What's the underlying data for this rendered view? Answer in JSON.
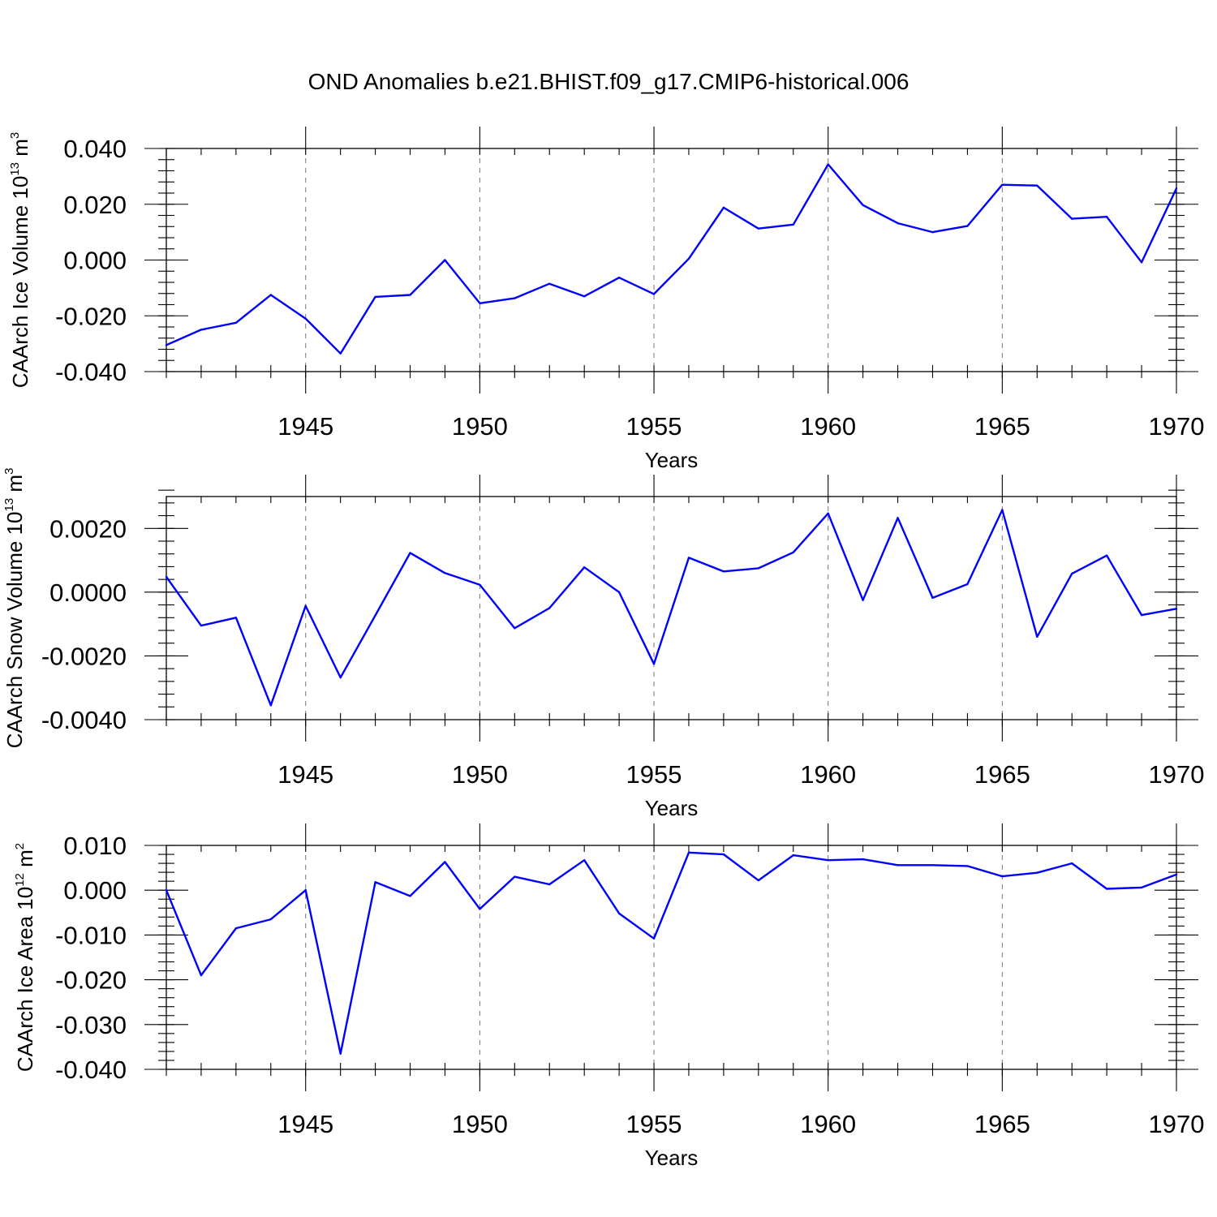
{
  "title": "OND Anomalies b.e21.BHIST.f09_g17.CMIP6-historical.006",
  "chart_data": [
    {
      "type": "line",
      "name": "ice-volume",
      "ylabel": "CAArch Ice Volume 10",
      "ylabel_exp": "13",
      "ylabel_unit": " m",
      "ylabel_unit_exp": "3",
      "xlabel": "Years",
      "xlim": [
        1941,
        1970
      ],
      "ylim": [
        -0.04,
        0.04
      ],
      "yticks": [
        -0.04,
        -0.02,
        0.0,
        0.02,
        0.04
      ],
      "ytick_labels": [
        "-0.040",
        "-0.020",
        "0.000",
        "0.020",
        "0.040"
      ],
      "xticks": [
        1945,
        1950,
        1955,
        1960,
        1965,
        1970
      ],
      "xtick_labels": [
        "1945",
        "1950",
        "1955",
        "1960",
        "1965",
        "1970"
      ],
      "x": [
        1941,
        1942,
        1943,
        1944,
        1945,
        1946,
        1947,
        1948,
        1949,
        1950,
        1951,
        1952,
        1953,
        1954,
        1955,
        1956,
        1957,
        1958,
        1959,
        1960,
        1961,
        1962,
        1963,
        1964,
        1965,
        1966,
        1967,
        1968,
        1969,
        1970
      ],
      "values": [
        -0.0305,
        -0.025,
        -0.0225,
        -0.0125,
        -0.021,
        -0.0335,
        -0.0132,
        -0.0125,
        0.0,
        -0.0155,
        -0.0137,
        -0.0085,
        -0.013,
        -0.0063,
        -0.0122,
        0.0005,
        0.0188,
        0.0113,
        0.0127,
        0.0343,
        0.0197,
        0.0132,
        0.01,
        0.0122,
        0.027,
        0.0267,
        0.0148,
        0.0155,
        -0.0008,
        0.0257
      ]
    },
    {
      "type": "line",
      "name": "snow-volume",
      "ylabel": "CAArch Snow Volume 10",
      "ylabel_exp": "13",
      "ylabel_unit": " m",
      "ylabel_unit_exp": "3",
      "xlabel": "Years",
      "xlim": [
        1941,
        1970
      ],
      "ylim": [
        -0.004,
        0.003
      ],
      "yticks": [
        -0.004,
        -0.002,
        0.0,
        0.002
      ],
      "ytick_labels": [
        "-0.0040",
        "-0.0020",
        "0.0000",
        "0.0020"
      ],
      "xticks": [
        1945,
        1950,
        1955,
        1960,
        1965,
        1970
      ],
      "xtick_labels": [
        "1945",
        "1950",
        "1955",
        "1960",
        "1965",
        "1970"
      ],
      "x": [
        1941,
        1942,
        1943,
        1944,
        1945,
        1946,
        1947,
        1948,
        1949,
        1950,
        1951,
        1952,
        1953,
        1954,
        1955,
        1956,
        1957,
        1958,
        1959,
        1960,
        1961,
        1962,
        1963,
        1964,
        1965,
        1966,
        1967,
        1968,
        1969,
        1970
      ],
      "values": [
        0.00048,
        -0.00105,
        -0.0008,
        -0.00355,
        -0.00043,
        -0.00268,
        -0.00073,
        0.00123,
        0.0006,
        0.00023,
        -0.00113,
        -0.0005,
        0.00078,
        0.0,
        -0.00225,
        0.00108,
        0.00065,
        0.00075,
        0.00125,
        0.00247,
        -0.00025,
        0.00233,
        -0.00018,
        0.00025,
        0.00258,
        -0.0014,
        0.00058,
        0.00115,
        -0.00072,
        -0.00052
      ]
    },
    {
      "type": "line",
      "name": "ice-area",
      "ylabel": "CAArch Ice Area 10",
      "ylabel_exp": "12",
      "ylabel_unit": " m",
      "ylabel_unit_exp": "2",
      "xlabel": "Years",
      "xlim": [
        1941,
        1970
      ],
      "ylim": [
        -0.04,
        0.01
      ],
      "yticks": [
        -0.04,
        -0.03,
        -0.02,
        -0.01,
        0.0,
        0.01
      ],
      "ytick_labels": [
        "-0.040",
        "-0.030",
        "-0.020",
        "-0.010",
        "0.000",
        "0.010"
      ],
      "xticks": [
        1945,
        1950,
        1955,
        1960,
        1965,
        1970
      ],
      "xtick_labels": [
        "1945",
        "1950",
        "1955",
        "1960",
        "1965",
        "1970"
      ],
      "x": [
        1941,
        1942,
        1943,
        1944,
        1945,
        1946,
        1947,
        1948,
        1949,
        1950,
        1951,
        1952,
        1953,
        1954,
        1955,
        1956,
        1957,
        1958,
        1959,
        1960,
        1961,
        1962,
        1963,
        1964,
        1965,
        1966,
        1967,
        1968,
        1969,
        1970
      ],
      "values": [
        0.0,
        -0.019,
        -0.0085,
        -0.0065,
        0.0,
        -0.0365,
        0.0018,
        -0.0013,
        0.0063,
        -0.0042,
        0.003,
        0.0013,
        0.0067,
        -0.0052,
        -0.0108,
        0.0084,
        0.008,
        0.0022,
        0.0078,
        0.0067,
        0.0069,
        0.0056,
        0.0056,
        0.0054,
        0.0031,
        0.0039,
        0.006,
        0.0003,
        0.0006,
        0.0035
      ]
    }
  ]
}
